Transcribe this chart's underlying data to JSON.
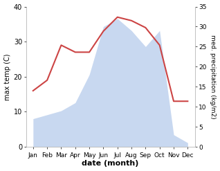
{
  "months": [
    "Jan",
    "Feb",
    "Mar",
    "Apr",
    "May",
    "Jun",
    "Jul",
    "Aug",
    "Sep",
    "Oct",
    "Nov",
    "Dec"
  ],
  "max_temp": [
    16,
    19,
    29,
    27,
    27,
    33,
    37,
    36,
    34,
    29,
    13,
    13
  ],
  "precipitation": [
    7,
    8,
    9,
    11,
    18,
    30,
    32,
    29,
    25,
    29,
    3,
    1
  ],
  "temp_color": "#cc4444",
  "precip_color_fill": "#c8d8f0",
  "temp_ylim": [
    0,
    40
  ],
  "precip_ylim": [
    0,
    35
  ],
  "temp_yticks": [
    0,
    10,
    20,
    30,
    40
  ],
  "precip_yticks": [
    0,
    5,
    10,
    15,
    20,
    25,
    30,
    35
  ],
  "xlabel": "date (month)",
  "ylabel_left": "max temp (C)",
  "ylabel_right": "med. precipitation (kg/m2)",
  "bg_color": "#ffffff"
}
